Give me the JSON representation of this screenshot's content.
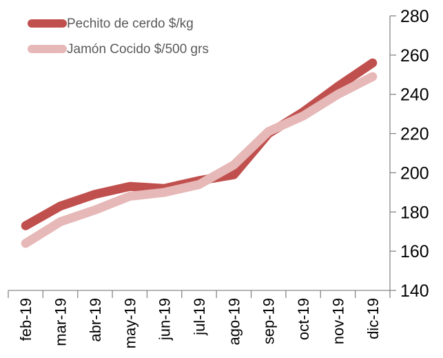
{
  "chart_data": {
    "type": "line",
    "categories": [
      "feb-19",
      "mar-19",
      "abr-19",
      "may-19",
      "jun-19",
      "jul-19",
      "ago-19",
      "sep-19",
      "oct-19",
      "nov-19",
      "dic-19"
    ],
    "series": [
      {
        "name": "Pechito de cerdo $/kg",
        "color": "#c0504d",
        "values": [
          173,
          183,
          189,
          193,
          192,
          196,
          199,
          220,
          231,
          244,
          256
        ]
      },
      {
        "name": "Jamón Cocido $/500 grs",
        "color": "#e6b8b7",
        "values": [
          164,
          175,
          181,
          188,
          190,
          194,
          204,
          221,
          229,
          240,
          249
        ]
      }
    ],
    "ylim": [
      140,
      280
    ],
    "yticks": [
      140,
      160,
      180,
      200,
      220,
      240,
      260,
      280
    ],
    "y_axis_side": "right",
    "grid": false,
    "legend_position": "top-left",
    "title": "",
    "xlabel": "",
    "ylabel": ""
  }
}
